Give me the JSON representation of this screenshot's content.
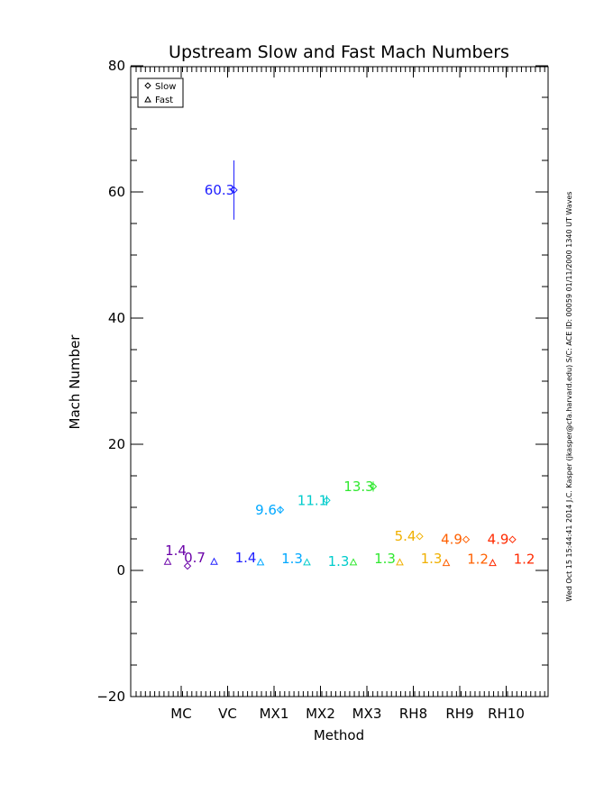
{
  "chart_data": {
    "type": "scatter",
    "title": "Upstream Slow and Fast Mach Numbers",
    "xlabel": "Method",
    "ylabel": "Mach Number",
    "ylim": [
      -20,
      80
    ],
    "yticks": [
      -20,
      0,
      20,
      40,
      60,
      80
    ],
    "grid": false,
    "legend_position": "top-left",
    "categories": [
      "MC",
      "VC",
      "MX1",
      "MX2",
      "MX3",
      "RH8",
      "RH9",
      "RH10"
    ],
    "category_colors": [
      "#6a00a8",
      "#2020ff",
      "#00a8ff",
      "#00cccc",
      "#30e830",
      "#f0b000",
      "#ff6000",
      "#ff2a00"
    ],
    "legend": [
      {
        "name": "Slow",
        "marker": "diamond"
      },
      {
        "name": "Fast",
        "marker": "triangle"
      }
    ],
    "series": [
      {
        "name": "Slow",
        "marker": "diamond",
        "values": [
          0.7,
          60.3,
          9.6,
          11.1,
          13.3,
          5.4,
          4.9,
          4.9
        ],
        "labels": [
          "0.7",
          "60.3",
          "9.6",
          "11.1",
          "13.3",
          "5.4",
          "4.9",
          "4.9"
        ],
        "error": [
          0,
          4.7,
          0.6,
          0.8,
          0.8,
          0,
          0,
          0
        ]
      },
      {
        "name": "Fast",
        "marker": "triangle",
        "values": [
          1.4,
          1.4,
          1.3,
          1.3,
          1.3,
          1.3,
          1.2,
          1.2
        ],
        "labels": [
          "1.4",
          "1.4",
          "1.3",
          "1.3",
          "1.3",
          "1.3",
          "1.2",
          "1.2"
        ]
      }
    ],
    "side_text": "Wed Oct 15 15:44:41 2014   J.C. Kasper (jkasper@cfa.harvard.edu)   S/C: ACE ID: 00059 01/11/2000   1340 UT Waves"
  }
}
